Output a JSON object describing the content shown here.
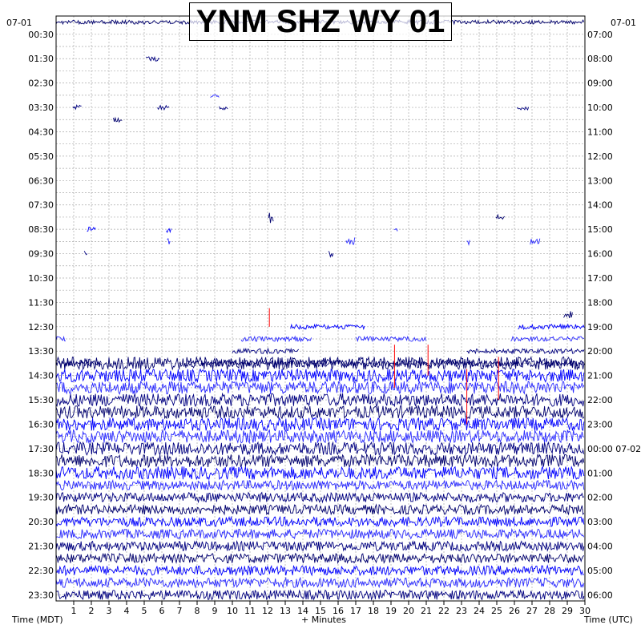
{
  "chart_data": {
    "type": "line",
    "title": "YNM SHZ WY 01",
    "left_date": "07-01",
    "right_date": "07-01",
    "right_date_change": "00:00 07-02",
    "xlabel": "+ Minutes",
    "left_axis_label": "Time (MDT)",
    "right_axis_label": "Time (UTC)",
    "x_ticks": [
      "1",
      "2",
      "3",
      "4",
      "5",
      "6",
      "7",
      "8",
      "9",
      "10",
      "11",
      "12",
      "13",
      "14",
      "15",
      "16",
      "17",
      "18",
      "19",
      "20",
      "21",
      "22",
      "23",
      "24",
      "25",
      "26",
      "27",
      "28",
      "29",
      "30"
    ],
    "xlim": [
      0,
      30
    ],
    "left_time_labels": [
      "00:30",
      "01:30",
      "02:30",
      "03:30",
      "04:30",
      "05:30",
      "06:30",
      "07:30",
      "08:30",
      "09:30",
      "10:30",
      "11:30",
      "12:30",
      "13:30",
      "14:30",
      "15:30",
      "16:30",
      "17:30",
      "18:30",
      "19:30",
      "20:30",
      "21:30",
      "22:30",
      "23:30"
    ],
    "right_time_labels": [
      "07:00",
      "08:00",
      "09:00",
      "10:00",
      "11:00",
      "12:00",
      "13:00",
      "14:00",
      "15:00",
      "16:00",
      "17:00",
      "18:00",
      "19:00",
      "20:00",
      "21:00",
      "22:00",
      "23:00",
      "00:00 07-02",
      "01:00",
      "02:00",
      "03:00",
      "04:00",
      "05:00",
      "06:00"
    ],
    "trace_colors": [
      "#00006e",
      "#0000ff",
      "#2a2aff",
      "#000080"
    ],
    "pick_color": "#ff0000",
    "grid": true,
    "grid_style": "dotted",
    "line_count": 48,
    "quiet_lines": [
      1,
      2,
      3,
      4,
      5,
      6,
      7,
      8,
      9,
      10,
      11,
      12,
      13,
      14,
      15,
      16,
      17,
      18,
      19,
      20,
      21,
      22,
      23,
      24
    ],
    "active_start_line": 25,
    "noisy_start_line": 28
  }
}
